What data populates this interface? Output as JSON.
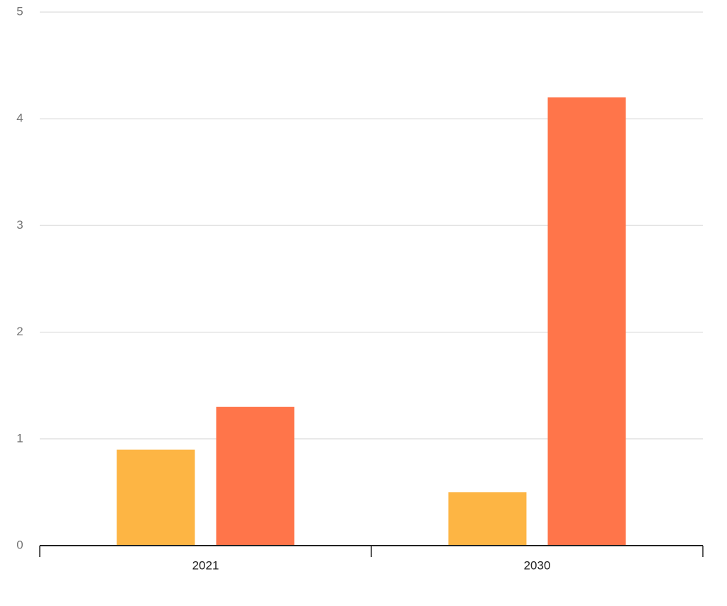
{
  "chart_data": {
    "type": "bar",
    "categories": [
      "2021",
      "2030"
    ],
    "series": [
      {
        "color": "#fdb544",
        "values": [
          0.9,
          0.5
        ]
      },
      {
        "color": "#ff754a",
        "values": [
          1.3,
          4.2
        ]
      }
    ],
    "ylim": [
      0,
      5
    ],
    "yticks": [
      0,
      1,
      2,
      3,
      4,
      5
    ],
    "grid": true
  }
}
